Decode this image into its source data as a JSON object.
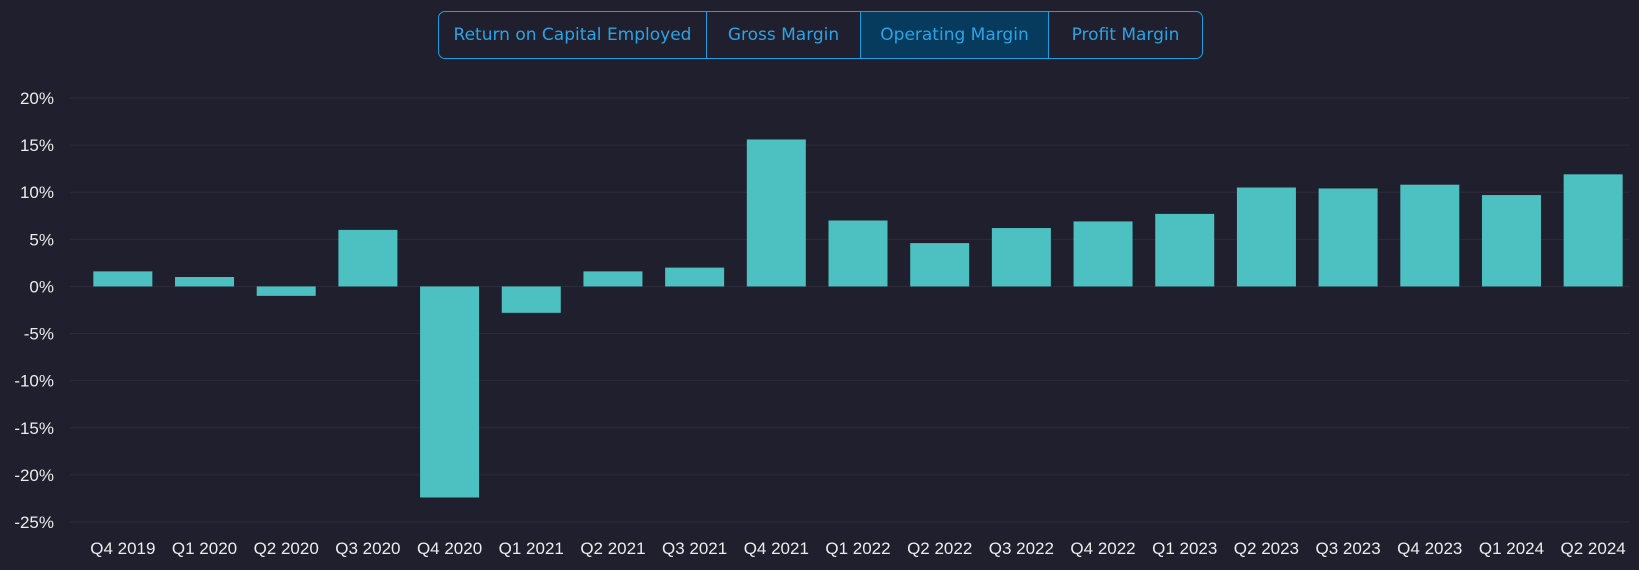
{
  "tabs": [
    {
      "label": "Return on Capital Employed",
      "active": false
    },
    {
      "label": "Gross Margin",
      "active": false
    },
    {
      "label": "Operating Margin",
      "active": true
    },
    {
      "label": "Profit Margin",
      "active": false
    }
  ],
  "colors": {
    "background": "#1f1f2d",
    "bar": "#4dc0c1",
    "tab_accent": "#2ba3e6",
    "tab_active_bg": "#063b5e",
    "grid": "#2b2b3a",
    "text": "#ececec"
  },
  "chart_data": {
    "type": "bar",
    "categories": [
      "Q4 2019",
      "Q1 2020",
      "Q2 2020",
      "Q3 2020",
      "Q4 2020",
      "Q1 2021",
      "Q2 2021",
      "Q3 2021",
      "Q4 2021",
      "Q1 2022",
      "Q2 2022",
      "Q3 2022",
      "Q4 2022",
      "Q1 2023",
      "Q2 2023",
      "Q3 2023",
      "Q4 2023",
      "Q1 2024",
      "Q2 2024"
    ],
    "values": [
      1.6,
      1.0,
      -1.0,
      6.0,
      -22.4,
      -2.8,
      1.6,
      2.0,
      15.6,
      7.0,
      4.6,
      6.2,
      6.9,
      7.7,
      10.5,
      10.4,
      10.8,
      9.7,
      11.9
    ],
    "ylim": [
      -25,
      20
    ],
    "yticks": [
      "20%",
      "15%",
      "10%",
      "5%",
      "0%",
      "-5%",
      "-10%",
      "-15%",
      "-20%",
      "-25%"
    ],
    "ytick_values": [
      20,
      15,
      10,
      5,
      0,
      -5,
      -10,
      -15,
      -20,
      -25
    ],
    "grid": true,
    "legend": "none"
  }
}
